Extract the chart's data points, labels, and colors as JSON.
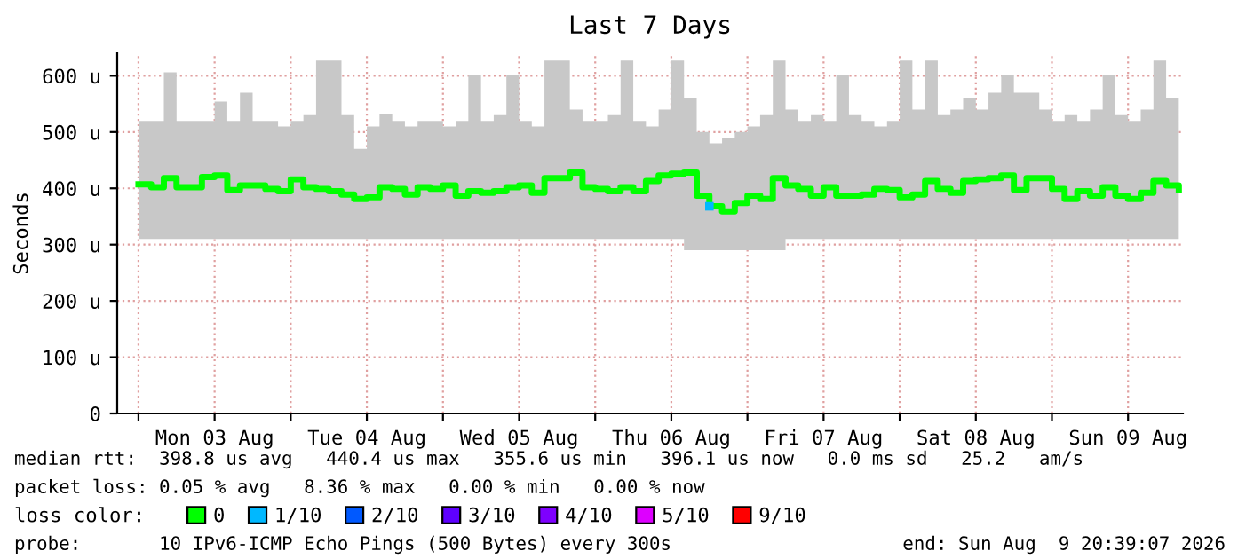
{
  "chart_data": {
    "type": "step",
    "title": "Last 7 Days",
    "ylabel": "Seconds",
    "legend_title": "loss color:",
    "xlim": [
      "2026-08-02T20:39",
      "2026-08-09T20:39"
    ],
    "xticks": [
      {
        "value": "2026-08-03T00:00",
        "label": null
      },
      {
        "value": "2026-08-03T12:00",
        "label": "Mon 03 Aug"
      },
      {
        "value": "2026-08-04T00:00",
        "label": null
      },
      {
        "value": "2026-08-04T12:00",
        "label": "Tue 04 Aug"
      },
      {
        "value": "2026-08-05T00:00",
        "label": null
      },
      {
        "value": "2026-08-05T12:00",
        "label": "Wed 05 Aug"
      },
      {
        "value": "2026-08-06T00:00",
        "label": null
      },
      {
        "value": "2026-08-06T12:00",
        "label": "Thu 06 Aug"
      },
      {
        "value": "2026-08-07T00:00",
        "label": null
      },
      {
        "value": "2026-08-07T12:00",
        "label": "Fri 07 Aug"
      },
      {
        "value": "2026-08-08T00:00",
        "label": null
      },
      {
        "value": "2026-08-08T12:00",
        "label": "Sat 08 Aug"
      },
      {
        "value": "2026-08-09T00:00",
        "label": null
      },
      {
        "value": "2026-08-09T12:00",
        "label": "Sun 09 Aug"
      }
    ],
    "ylim": [
      0,
      640
    ],
    "yticks": [
      0,
      {
        "value": 100,
        "label": "100 u"
      },
      {
        "value": 200,
        "label": "200 u"
      },
      {
        "value": 300,
        "label": "300 u"
      },
      {
        "value": 400,
        "label": "400 u"
      },
      {
        "value": 500,
        "label": "500 u"
      },
      {
        "value": 600,
        "label": "600 u"
      }
    ],
    "grid": true,
    "legend": "bottom",
    "series": [
      {
        "name": "0",
        "color": "#00ff00",
        "x": [
          "2026-08-03T00:00",
          "2026-08-03T02:00",
          "2026-08-03T04:00",
          "2026-08-03T06:00",
          "2026-08-03T08:00",
          "2026-08-03T10:00",
          "2026-08-03T12:00",
          "2026-08-03T14:00",
          "2026-08-03T16:00",
          "2026-08-03T18:00",
          "2026-08-03T20:00",
          "2026-08-03T22:00",
          "2026-08-04T00:00",
          "2026-08-04T02:00",
          "2026-08-04T04:00",
          "2026-08-04T06:00",
          "2026-08-04T08:00",
          "2026-08-04T10:00",
          "2026-08-04T12:00",
          "2026-08-04T14:00",
          "2026-08-04T16:00",
          "2026-08-04T18:00",
          "2026-08-04T20:00",
          "2026-08-04T22:00",
          "2026-08-05T00:00",
          "2026-08-05T02:00",
          "2026-08-05T04:00",
          "2026-08-05T06:00",
          "2026-08-05T08:00",
          "2026-08-05T10:00",
          "2026-08-05T12:00",
          "2026-08-05T14:00",
          "2026-08-05T16:00",
          "2026-08-05T18:00",
          "2026-08-05T20:00",
          "2026-08-05T22:00",
          "2026-08-06T00:00",
          "2026-08-06T02:00",
          "2026-08-06T04:00",
          "2026-08-06T06:00",
          "2026-08-06T08:00",
          "2026-08-06T10:00",
          "2026-08-06T12:00",
          "2026-08-06T14:00",
          "2026-08-06T16:00",
          "2026-08-06T18:00",
          "2026-08-06T20:00",
          "2026-08-06T22:00",
          "2026-08-07T00:00",
          "2026-08-07T02:00",
          "2026-08-07T04:00",
          "2026-08-07T06:00",
          "2026-08-07T08:00",
          "2026-08-07T10:00",
          "2026-08-07T12:00",
          "2026-08-07T14:00",
          "2026-08-07T16:00",
          "2026-08-07T18:00",
          "2026-08-07T20:00",
          "2026-08-07T22:00",
          "2026-08-08T00:00",
          "2026-08-08T02:00",
          "2026-08-08T04:00",
          "2026-08-08T06:00",
          "2026-08-08T08:00",
          "2026-08-08T10:00",
          "2026-08-08T12:00",
          "2026-08-08T14:00",
          "2026-08-08T16:00",
          "2026-08-08T18:00",
          "2026-08-08T20:00",
          "2026-08-08T22:00",
          "2026-08-09T00:00",
          "2026-08-09T02:00",
          "2026-08-09T04:00",
          "2026-08-09T06:00",
          "2026-08-09T08:00",
          "2026-08-09T10:00",
          "2026-08-09T12:00",
          "2026-08-09T14:00",
          "2026-08-09T16:00",
          "2026-08-09T18:00",
          "2026-08-09T20:00"
        ],
        "values": [
          407,
          402,
          418,
          402,
          402,
          420,
          423,
          397,
          405,
          405,
          399,
          395,
          416,
          402,
          399,
          395,
          389,
          381,
          384,
          402,
          399,
          389,
          402,
          399,
          405,
          387,
          395,
          392,
          395,
          402,
          405,
          392,
          418,
          418,
          428,
          402,
          399,
          395,
          402,
          395,
          413,
          423,
          426,
          428,
          387,
          368,
          359,
          374,
          387,
          381,
          418,
          405,
          399,
          387,
          402,
          387,
          387,
          389,
          399,
          397,
          384,
          389,
          413,
          399,
          392,
          413,
          416,
          418,
          423,
          397,
          418,
          418,
          399,
          381,
          395,
          387,
          402,
          387,
          381,
          392,
          413,
          405,
          397
        ],
        "lower": [
          310,
          310,
          310,
          310,
          310,
          310,
          310,
          310,
          310,
          310,
          310,
          310,
          310,
          310,
          310,
          310,
          310,
          310,
          310,
          310,
          310,
          310,
          310,
          310,
          310,
          310,
          310,
          310,
          310,
          310,
          310,
          310,
          310,
          310,
          310,
          310,
          310,
          310,
          310,
          310,
          310,
          310,
          310,
          290,
          290,
          290,
          290,
          290,
          290,
          290,
          290,
          310,
          310,
          310,
          310,
          310,
          310,
          310,
          310,
          310,
          310,
          310,
          310,
          310,
          310,
          310,
          310,
          310,
          310,
          310,
          310,
          310,
          310,
          310,
          310,
          310,
          310,
          310,
          310,
          310,
          310,
          310,
          310
        ],
        "upper": [
          520,
          520,
          606,
          520,
          520,
          520,
          554,
          520,
          570,
          520,
          520,
          510,
          520,
          530,
          627,
          627,
          530,
          470,
          510,
          533,
          520,
          510,
          520,
          520,
          510,
          520,
          601,
          520,
          530,
          601,
          520,
          510,
          627,
          627,
          540,
          520,
          520,
          530,
          627,
          520,
          510,
          540,
          627,
          560,
          500,
          480,
          490,
          500,
          510,
          530,
          627,
          540,
          520,
          530,
          520,
          601,
          530,
          520,
          510,
          520,
          627,
          540,
          627,
          530,
          540,
          560,
          540,
          570,
          601,
          570,
          570,
          540,
          520,
          530,
          520,
          540,
          601,
          530,
          520,
          540,
          627,
          560,
          520
        ]
      },
      {
        "name": "1/10",
        "color": "#00b8ff",
        "type": "scatter",
        "x": [
          "2026-08-06T18:00"
        ],
        "values": [
          368
        ]
      },
      {
        "name": "2/10",
        "color": "#0059ff",
        "type": "scatter"
      },
      {
        "name": "3/10",
        "color": "#5e00ff",
        "type": "scatter"
      },
      {
        "name": "4/10",
        "color": "#7e00ff",
        "type": "scatter"
      },
      {
        "name": "5/10",
        "color": "#dd00ff",
        "type": "scatter"
      },
      {
        "name": "9/10",
        "color": "#ff0000",
        "type": "scatter"
      }
    ],
    "annotations": [
      "median rtt:  398.8 us avg   440.4 us max   355.6 us min   396.1 us now   0.0 ms sd   25.2   am/s",
      "packet loss: 0.05 % avg   8.36 % max   0.00 % min   0.00 % now",
      "probe:       10 IPv6-ICMP Echo Pings (500 Bytes) every 300s",
      "end: Sun Aug  9 20:39:07 2026"
    ]
  }
}
